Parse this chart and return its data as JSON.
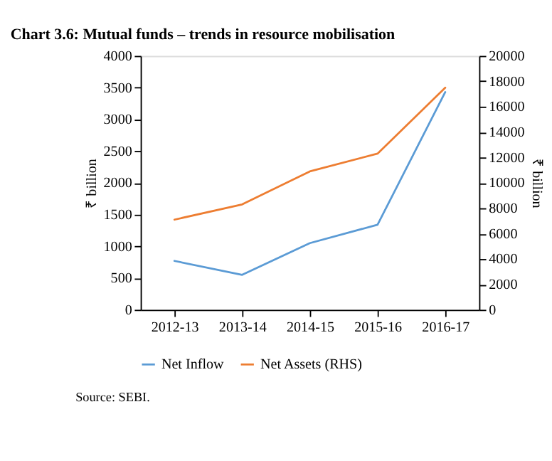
{
  "chart_data": {
    "type": "line",
    "title": "Chart 3.6: Mutual funds – trends in resource mobilisation",
    "categories": [
      "2012-13",
      "2013-14",
      "2014-15",
      "2015-16",
      "2016-17"
    ],
    "series": [
      {
        "name": "Net Inflow",
        "color": "#5b9bd5",
        "values": [
          770,
          550,
          1050,
          1340,
          3430
        ]
      },
      {
        "name": "Net Assets (RHS)",
        "color": "#ed7d31",
        "axis": "y2",
        "values": [
          7100,
          8300,
          10900,
          12300,
          17500
        ]
      }
    ],
    "ylabel": "₹ billion",
    "y2label": "₹ billion",
    "ylim": [
      0,
      4000
    ],
    "yticks": [
      0,
      500,
      1000,
      1500,
      2000,
      2500,
      3000,
      3500,
      4000
    ],
    "y2lim": [
      0,
      20000
    ],
    "y2ticks": [
      0,
      2000,
      4000,
      6000,
      8000,
      10000,
      12000,
      14000,
      16000,
      18000,
      20000
    ],
    "grid": false,
    "legend": "bottom",
    "marker": "none",
    "line_style": "solid",
    "annotations": [
      "Source: SEBI."
    ]
  }
}
